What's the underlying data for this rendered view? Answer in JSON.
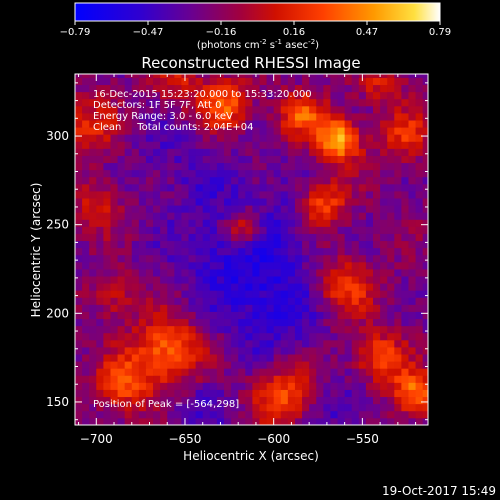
{
  "colorbar": {
    "ticks": [
      "-0.79",
      "-0.47",
      "-0.16",
      "0.16",
      "0.47",
      "0.79"
    ],
    "range": [
      -0.79,
      0.79
    ],
    "units_prefix": "(photons cm",
    "units_exp1": "-2",
    "units_mid": " s",
    "units_exp2": "-1",
    "units_mid2": " asec",
    "units_exp3": "-2",
    "units_suffix": ")"
  },
  "chart_data": {
    "type": "heatmap",
    "title": "Reconstructed RHESSI Image",
    "xlabel": "Heliocentric X (arcsec)",
    "ylabel": "Heliocentric Y (arcsec)",
    "xlim": [
      -712,
      -513
    ],
    "ylim": [
      137,
      335
    ],
    "xticks": [
      -700,
      -650,
      -600,
      -550
    ],
    "yticks": [
      150,
      200,
      250,
      300
    ],
    "xtick_labels": [
      "−700",
      "−650",
      "−600",
      "−550"
    ],
    "ytick_labels": [
      "150",
      "200",
      "250",
      "300"
    ],
    "info_lines": [
      "16-Dec-2015 15:23:20.000 to 15:33:20.000",
      "Detectors: 1F 5F 7F, Att 0",
      "Energy Range: 3.0 - 6.0 keV",
      "Clean     Total counts: 2.04E+04"
    ],
    "peak_note": "Position of Peak = [-564,298]",
    "peak_position": [
      -564,
      298
    ],
    "pixel_arcsec": 4,
    "sources": [
      {
        "x": -617,
        "y": 248,
        "amp": 0.62,
        "r": 8
      },
      {
        "x": -564,
        "y": 298,
        "amp": 0.79,
        "r": 9
      },
      {
        "x": -628,
        "y": 318,
        "amp": 0.55,
        "r": 10
      },
      {
        "x": -585,
        "y": 312,
        "amp": 0.5,
        "r": 9
      },
      {
        "x": -705,
        "y": 305,
        "amp": 0.35,
        "r": 12
      },
      {
        "x": -572,
        "y": 262,
        "amp": 0.55,
        "r": 9
      },
      {
        "x": -700,
        "y": 262,
        "amp": 0.3,
        "r": 10
      },
      {
        "x": -660,
        "y": 178,
        "amp": 0.6,
        "r": 14
      },
      {
        "x": -685,
        "y": 160,
        "amp": 0.45,
        "r": 11
      },
      {
        "x": -595,
        "y": 155,
        "amp": 0.5,
        "r": 12
      },
      {
        "x": -560,
        "y": 215,
        "amp": 0.45,
        "r": 12
      },
      {
        "x": -540,
        "y": 175,
        "amp": 0.5,
        "r": 10
      },
      {
        "x": -520,
        "y": 155,
        "amp": 0.6,
        "r": 9
      },
      {
        "x": -525,
        "y": 300,
        "amp": 0.4,
        "r": 10
      },
      {
        "x": -540,
        "y": 330,
        "amp": 0.3,
        "r": 9
      },
      {
        "x": -690,
        "y": 210,
        "amp": 0.3,
        "r": 9
      },
      {
        "x": -655,
        "y": 330,
        "amp": 0.3,
        "r": 10
      }
    ],
    "negative_regions": [
      {
        "x": -617,
        "y": 240,
        "amp": -0.35,
        "r": 26
      },
      {
        "x": -600,
        "y": 200,
        "amp": -0.25,
        "r": 20
      },
      {
        "x": -660,
        "y": 290,
        "amp": -0.15,
        "r": 16
      },
      {
        "x": -640,
        "y": 150,
        "amp": -0.2,
        "r": 12
      },
      {
        "x": -560,
        "y": 145,
        "amp": -0.2,
        "r": 12
      }
    ]
  },
  "footer": {
    "timestamp": "19-Oct-2017 15:49"
  },
  "colors": {
    "background": "#000000",
    "text": "#ffffff",
    "colormap": [
      "#0000ff",
      "#4000c0",
      "#800080",
      "#c00020",
      "#ff3000",
      "#ff8000",
      "#ffd000",
      "#ffffff"
    ]
  }
}
